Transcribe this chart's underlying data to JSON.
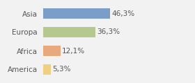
{
  "categories": [
    "Asia",
    "Europa",
    "Africa",
    "America"
  ],
  "values": [
    46.3,
    36.3,
    12.1,
    5.3
  ],
  "labels": [
    "46,3%",
    "36,3%",
    "12,1%",
    "5,3%"
  ],
  "bar_colors": [
    "#7b9ec9",
    "#b5c98e",
    "#e8a97e",
    "#f0d080"
  ],
  "background_color": "#f2f2f2",
  "xlim": [
    0,
    75
  ],
  "bar_height": 0.55,
  "label_fontsize": 7.5,
  "category_fontsize": 7.5,
  "figsize": [
    2.8,
    1.2
  ],
  "dpi": 100
}
